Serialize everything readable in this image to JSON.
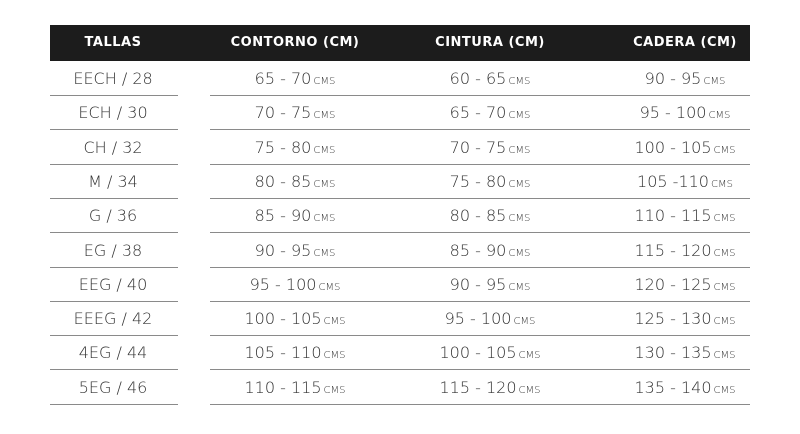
{
  "headers": [
    "TALLAS",
    "CONTORNO (CM)",
    "CINTURA (CM)",
    "CADERA (CM)"
  ],
  "unit": "CMS",
  "rows": [
    {
      "talla": "EECH / 28",
      "contorno": "65 - 70",
      "cintura": "60 - 65",
      "cadera": "90 - 95"
    },
    {
      "talla": "ECH / 30",
      "contorno": "70 - 75",
      "cintura": "65 - 70",
      "cadera": "95 - 100"
    },
    {
      "talla": "CH / 32",
      "contorno": "75 - 80",
      "cintura": "70 - 75",
      "cadera": "100 - 105"
    },
    {
      "talla": "M / 34",
      "contorno": "80 - 85",
      "cintura": "75 - 80",
      "cadera": "105 -110"
    },
    {
      "talla": "G / 36",
      "contorno": "85 - 90",
      "cintura": "80 - 85",
      "cadera": "110 - 115"
    },
    {
      "talla": "EG / 38",
      "contorno": "90 - 95",
      "cintura": "85 - 90",
      "cadera": "115 - 120"
    },
    {
      "talla": "EEG / 40",
      "contorno": "95 - 100",
      "cintura": "90 - 95",
      "cadera": "120 - 125"
    },
    {
      "talla": "EEEG / 42",
      "contorno": "100 - 105",
      "cintura": "95 - 100",
      "cadera": "125 - 130"
    },
    {
      "talla": "4EG / 44",
      "contorno": "105 - 110",
      "cintura": "100 - 105",
      "cadera": "130 - 135"
    },
    {
      "talla": "5EG / 46",
      "contorno": "110 - 115",
      "cintura": "115 - 120",
      "cadera": "135 - 140"
    }
  ]
}
